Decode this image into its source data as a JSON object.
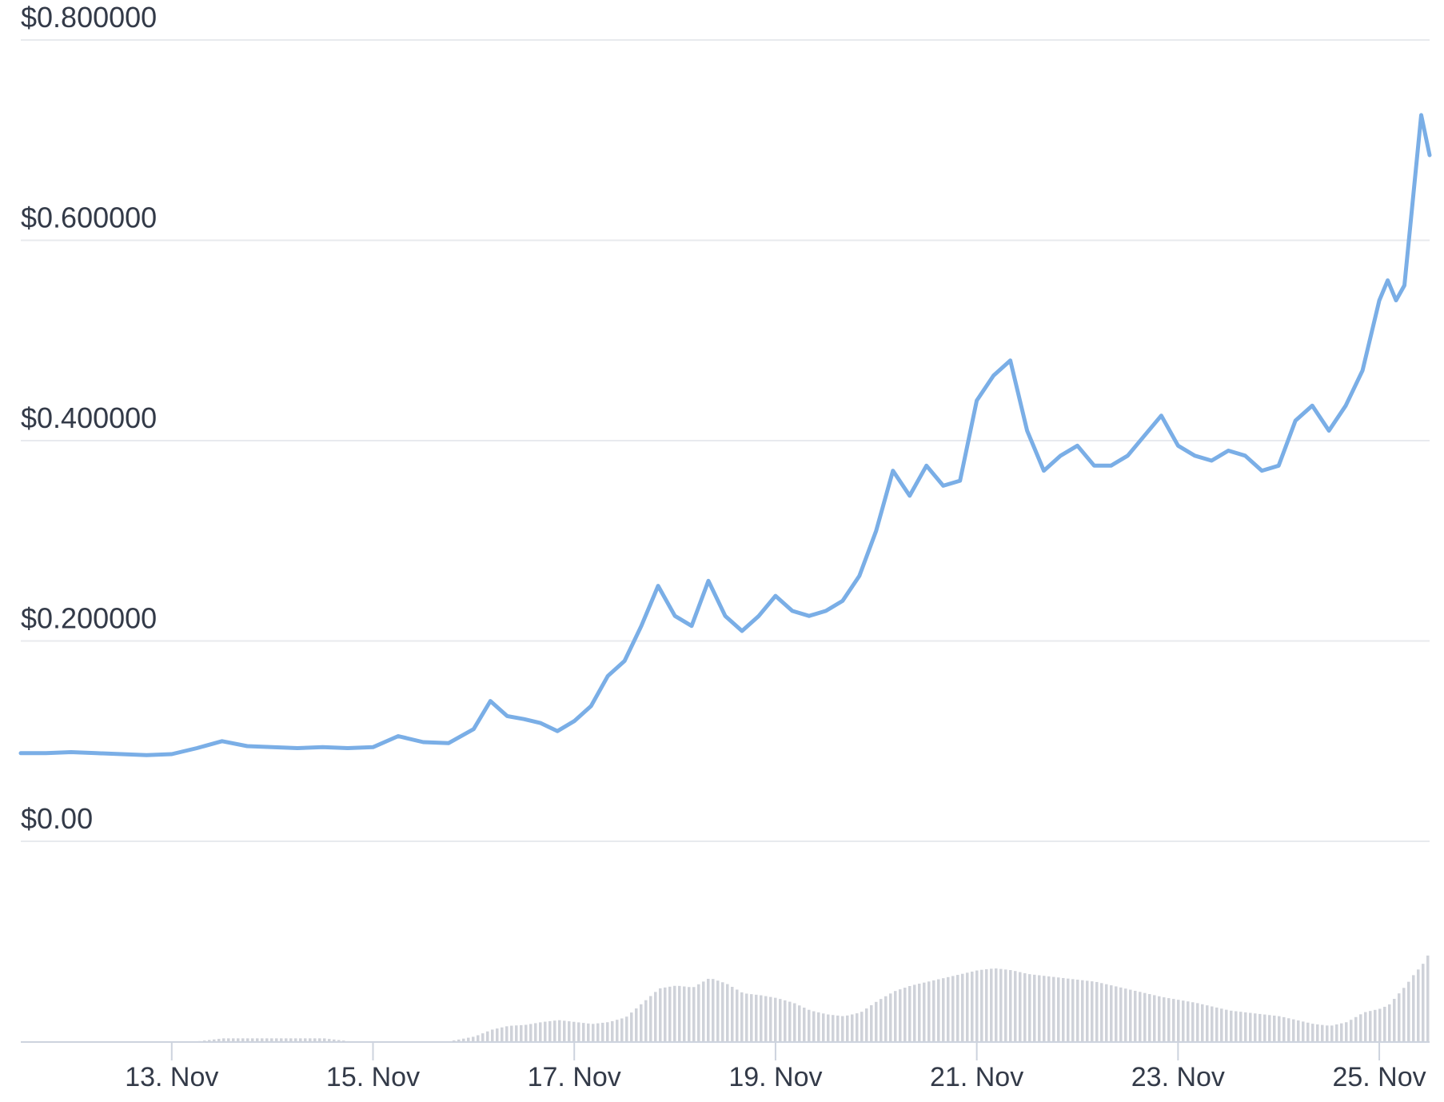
{
  "chart_data": {
    "type": "line",
    "title": "",
    "xlabel": "",
    "ylabel": "",
    "ylim": [
      0,
      0.8
    ],
    "xlim": [
      "2023-11-11T12:00",
      "2023-11-25T12:00"
    ],
    "yticks": [
      {
        "value": 0.0,
        "label": "$0.00"
      },
      {
        "value": 0.2,
        "label": "$0.200000"
      },
      {
        "value": 0.4,
        "label": "$0.400000"
      },
      {
        "value": 0.6,
        "label": "$0.600000"
      },
      {
        "value": 0.8,
        "label": "$0.800000"
      }
    ],
    "xticks": [
      {
        "value": "2023-11-13",
        "label": "13. Nov"
      },
      {
        "value": "2023-11-15",
        "label": "15. Nov"
      },
      {
        "value": "2023-11-17",
        "label": "17. Nov"
      },
      {
        "value": "2023-11-19",
        "label": "19. Nov"
      },
      {
        "value": "2023-11-21",
        "label": "21. Nov"
      },
      {
        "value": "2023-11-23",
        "label": "23. Nov"
      },
      {
        "value": "2023-11-25",
        "label": "25. Nov"
      }
    ],
    "grid": true,
    "colors": {
      "price_line": "#7aaee6",
      "volume_bars": "#cfd2d9",
      "grid": "#e8eaee",
      "axis": "#cdd3de",
      "text": "#333a48"
    },
    "series": [
      {
        "values_from": "price",
        "x": [
          "2023-11-11T12:00",
          "2023-11-11T18:00",
          "2023-11-12T00:00",
          "2023-11-12T06:00",
          "2023-11-12T12:00",
          "2023-11-12T18:00",
          "2023-11-13T00:00",
          "2023-11-13T06:00",
          "2023-11-13T12:00",
          "2023-11-13T18:00",
          "2023-11-14T00:00",
          "2023-11-14T06:00",
          "2023-11-14T12:00",
          "2023-11-14T18:00",
          "2023-11-15T00:00",
          "2023-11-15T06:00",
          "2023-11-15T12:00",
          "2023-11-15T18:00",
          "2023-11-16T00:00",
          "2023-11-16T04:00",
          "2023-11-16T08:00",
          "2023-11-16T12:00",
          "2023-11-16T16:00",
          "2023-11-16T20:00",
          "2023-11-17T00:00",
          "2023-11-17T04:00",
          "2023-11-17T08:00",
          "2023-11-17T12:00",
          "2023-11-17T16:00",
          "2023-11-17T20:00",
          "2023-11-18T00:00",
          "2023-11-18T04:00",
          "2023-11-18T08:00",
          "2023-11-18T12:00",
          "2023-11-18T16:00",
          "2023-11-18T20:00",
          "2023-11-19T00:00",
          "2023-11-19T04:00",
          "2023-11-19T08:00",
          "2023-11-19T12:00",
          "2023-11-19T16:00",
          "2023-11-19T20:00",
          "2023-11-20T00:00",
          "2023-11-20T04:00",
          "2023-11-20T08:00",
          "2023-11-20T12:00",
          "2023-11-20T16:00",
          "2023-11-20T20:00",
          "2023-11-21T00:00",
          "2023-11-21T04:00",
          "2023-11-21T08:00",
          "2023-11-21T12:00",
          "2023-11-21T16:00",
          "2023-11-21T20:00",
          "2023-11-22T00:00",
          "2023-11-22T04:00",
          "2023-11-22T08:00",
          "2023-11-22T12:00",
          "2023-11-22T16:00",
          "2023-11-22T20:00",
          "2023-11-23T00:00",
          "2023-11-23T04:00",
          "2023-11-23T08:00",
          "2023-11-23T12:00",
          "2023-11-23T16:00",
          "2023-11-23T20:00",
          "2023-11-24T00:00",
          "2023-11-24T04:00",
          "2023-11-24T08:00",
          "2023-11-24T12:00",
          "2023-11-24T16:00",
          "2023-11-24T20:00",
          "2023-11-25T00:00",
          "2023-11-25T02:00",
          "2023-11-25T04:00",
          "2023-11-25T06:00",
          "2023-11-25T08:00",
          "2023-11-25T10:00",
          "2023-11-25T12:00"
        ],
        "price": [
          0.088,
          0.088,
          0.089,
          0.088,
          0.087,
          0.086,
          0.087,
          0.093,
          0.1,
          0.095,
          0.094,
          0.093,
          0.094,
          0.093,
          0.094,
          0.105,
          0.099,
          0.098,
          0.112,
          0.14,
          0.125,
          0.122,
          0.118,
          0.11,
          0.12,
          0.135,
          0.165,
          0.18,
          0.215,
          0.255,
          0.225,
          0.215,
          0.26,
          0.225,
          0.21,
          0.225,
          0.245,
          0.23,
          0.225,
          0.23,
          0.24,
          0.265,
          0.31,
          0.37,
          0.345,
          0.375,
          0.355,
          0.36,
          0.44,
          0.465,
          0.48,
          0.41,
          0.37,
          0.385,
          0.395,
          0.375,
          0.375,
          0.385,
          0.405,
          0.425,
          0.395,
          0.385,
          0.38,
          0.39,
          0.385,
          0.37,
          0.375,
          0.42,
          0.435,
          0.41,
          0.435,
          0.47,
          0.54,
          0.56,
          0.54,
          0.555,
          0.64,
          0.725,
          0.685
        ],
        "volume_relative": [
          0.0,
          0.0,
          0.0,
          0.0,
          0.0,
          0.0,
          0.0,
          0.0,
          0.03,
          0.03,
          0.03,
          0.03,
          0.03,
          0.0,
          0.0,
          0.0,
          0.0,
          0.0,
          0.05,
          0.12,
          0.16,
          0.17,
          0.2,
          0.22,
          0.2,
          0.18,
          0.2,
          0.25,
          0.4,
          0.55,
          0.58,
          0.56,
          0.66,
          0.6,
          0.5,
          0.48,
          0.45,
          0.4,
          0.32,
          0.28,
          0.26,
          0.3,
          0.42,
          0.52,
          0.58,
          0.62,
          0.66,
          0.7,
          0.74,
          0.76,
          0.74,
          0.7,
          0.68,
          0.66,
          0.64,
          0.62,
          0.58,
          0.54,
          0.5,
          0.46,
          0.43,
          0.4,
          0.36,
          0.32,
          0.3,
          0.28,
          0.26,
          0.22,
          0.18,
          0.16,
          0.2,
          0.3,
          0.34,
          0.38,
          0.48,
          0.58,
          0.7,
          0.8,
          0.95
        ]
      }
    ]
  }
}
